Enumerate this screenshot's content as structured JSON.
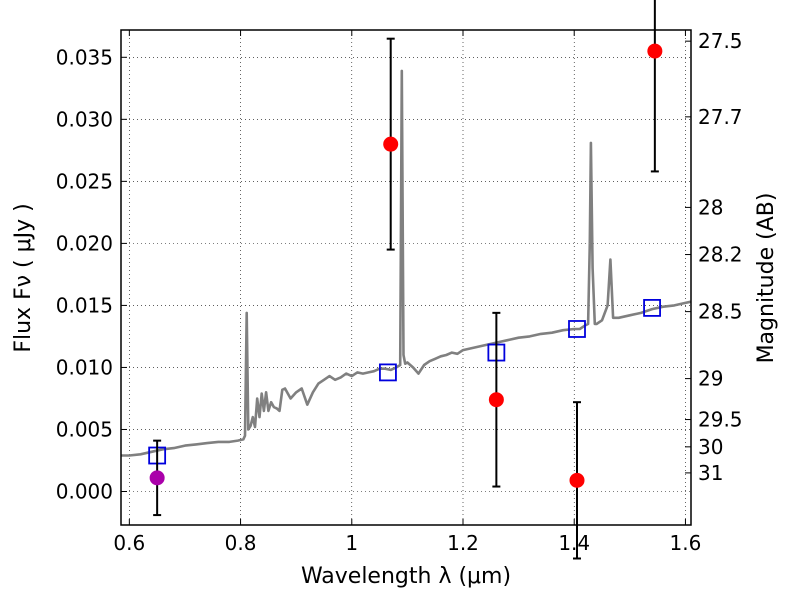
{
  "chart_data": {
    "type": "scatter",
    "xlabel": "Wavelength  λ (μm)",
    "ylabel": "Flux  Fν  ( μJy )",
    "ylabel2": "Magnitude (AB)",
    "xlim": [
      0.585,
      1.61
    ],
    "ylim": [
      -0.0027,
      0.0372
    ],
    "grid": true,
    "x_ticks": [
      {
        "value": 0.6,
        "label": "0.6"
      },
      {
        "value": 0.8,
        "label": "0.8"
      },
      {
        "value": 1.0,
        "label": "1"
      },
      {
        "value": 1.2,
        "label": "1.2"
      },
      {
        "value": 1.4,
        "label": "1.4"
      },
      {
        "value": 1.6,
        "label": "1.6"
      }
    ],
    "y_ticks": [
      {
        "value": 0.0,
        "label": "0.000"
      },
      {
        "value": 0.005,
        "label": "0.005"
      },
      {
        "value": 0.01,
        "label": "0.010"
      },
      {
        "value": 0.015,
        "label": "0.015"
      },
      {
        "value": 0.02,
        "label": "0.020"
      },
      {
        "value": 0.025,
        "label": "0.025"
      },
      {
        "value": 0.03,
        "label": "0.030"
      },
      {
        "value": 0.035,
        "label": "0.035"
      }
    ],
    "mag_ticks": [
      {
        "label": "27.5",
        "flux": 0.0363
      },
      {
        "label": "27.7",
        "flux": 0.0302
      },
      {
        "label": "28",
        "flux": 0.0229
      },
      {
        "label": "28.2",
        "flux": 0.0191
      },
      {
        "label": "28.5",
        "flux": 0.0145
      },
      {
        "label": "29",
        "flux": 0.0091
      },
      {
        "label": "29.5",
        "flux": 0.0058
      },
      {
        "label": "30",
        "flux": 0.0036
      },
      {
        "label": "31",
        "flux": 0.0015
      }
    ],
    "series": [
      {
        "kind": "line",
        "color": "#808080",
        "x": [
          0.585,
          0.6,
          0.62,
          0.64,
          0.66,
          0.68,
          0.7,
          0.72,
          0.74,
          0.76,
          0.78,
          0.795,
          0.805,
          0.808,
          0.811,
          0.814,
          0.818,
          0.822,
          0.826,
          0.83,
          0.834,
          0.838,
          0.842,
          0.846,
          0.85,
          0.855,
          0.86,
          0.865,
          0.87,
          0.875,
          0.88,
          0.89,
          0.9,
          0.91,
          0.92,
          0.93,
          0.94,
          0.95,
          0.96,
          0.97,
          0.98,
          0.99,
          1.0,
          1.01,
          1.02,
          1.03,
          1.04,
          1.05,
          1.06,
          1.07,
          1.08,
          1.087,
          1.09,
          1.093,
          1.096,
          1.1,
          1.11,
          1.12,
          1.13,
          1.14,
          1.15,
          1.16,
          1.17,
          1.18,
          1.19,
          1.2,
          1.22,
          1.24,
          1.26,
          1.28,
          1.3,
          1.32,
          1.34,
          1.36,
          1.38,
          1.4,
          1.41,
          1.42,
          1.425,
          1.428,
          1.43,
          1.433,
          1.437,
          1.44,
          1.45,
          1.46,
          1.465,
          1.47,
          1.48,
          1.5,
          1.52,
          1.54,
          1.56,
          1.58,
          1.6,
          1.61
        ],
        "y": [
          0.0029,
          0.0029,
          0.003,
          0.0032,
          0.0034,
          0.0035,
          0.0037,
          0.0038,
          0.0039,
          0.004,
          0.004,
          0.0041,
          0.0042,
          0.0045,
          0.0144,
          0.005,
          0.0053,
          0.006,
          0.0052,
          0.0075,
          0.006,
          0.0079,
          0.0065,
          0.008,
          0.0065,
          0.0072,
          0.0068,
          0.0067,
          0.0065,
          0.0082,
          0.0083,
          0.0075,
          0.008,
          0.0083,
          0.007,
          0.008,
          0.0087,
          0.009,
          0.0093,
          0.009,
          0.0092,
          0.0095,
          0.0093,
          0.0096,
          0.0095,
          0.0096,
          0.0097,
          0.0099,
          0.0099,
          0.0098,
          0.01,
          0.0102,
          0.0339,
          0.011,
          0.0103,
          0.0104,
          0.01,
          0.0095,
          0.0102,
          0.0105,
          0.0107,
          0.0109,
          0.011,
          0.0112,
          0.0111,
          0.0114,
          0.0116,
          0.0118,
          0.012,
          0.0122,
          0.0124,
          0.0125,
          0.0127,
          0.0128,
          0.013,
          0.0131,
          0.0131,
          0.0134,
          0.0135,
          0.02,
          0.0281,
          0.018,
          0.0135,
          0.0135,
          0.0138,
          0.015,
          0.0187,
          0.014,
          0.014,
          0.0142,
          0.0144,
          0.0147,
          0.0149,
          0.015,
          0.0152,
          0.0153
        ]
      },
      {
        "kind": "open-square",
        "color": "#0000dd",
        "x": [
          0.65,
          1.065,
          1.26,
          1.405,
          1.54
        ],
        "y": [
          0.0029,
          0.0096,
          0.0112,
          0.0131,
          0.0148
        ]
      },
      {
        "kind": "error-points",
        "color": "#ff0000",
        "x": [
          1.07,
          1.26,
          1.405,
          1.545
        ],
        "y": [
          0.028,
          0.0074,
          0.0009,
          0.0355
        ],
        "err": [
          0.0085,
          0.007,
          0.0063,
          0.0097
        ]
      },
      {
        "kind": "error-points",
        "color": "#aa00aa",
        "x": [
          0.65
        ],
        "y": [
          0.0011
        ],
        "err": [
          0.003
        ]
      }
    ]
  }
}
